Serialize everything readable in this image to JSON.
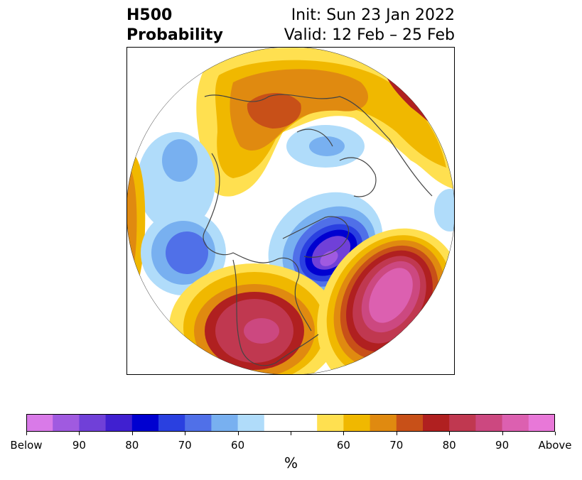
{
  "title": {
    "left_line1": "H500",
    "left_line2": "Probability",
    "right_line1": "Init: Sun 23 Jan 2022",
    "right_line2": "Valid: 12 Feb – 25 Feb"
  },
  "colorbar": {
    "labels": [
      "Below",
      "90",
      "80",
      "70",
      "60",
      "",
      "60",
      "70",
      "80",
      "90",
      "Above"
    ],
    "unit": "%",
    "colors": [
      "#d97ae8",
      "#a05ae0",
      "#7040d8",
      "#4020d0",
      "#0000d0",
      "#2a40e0",
      "#5070e8",
      "#78b0f0",
      "#b0dcfa",
      "#ffffff",
      "#ffffff",
      "#ffe050",
      "#f0b800",
      "#e08a10",
      "#c85018",
      "#b02020",
      "#c03850",
      "#cc4880",
      "#dc60b0",
      "#e878d8"
    ]
  },
  "legend": {
    "below_color": "#4020d0",
    "above_color": "#c03850",
    "neutral_color": "#ffffff"
  }
}
